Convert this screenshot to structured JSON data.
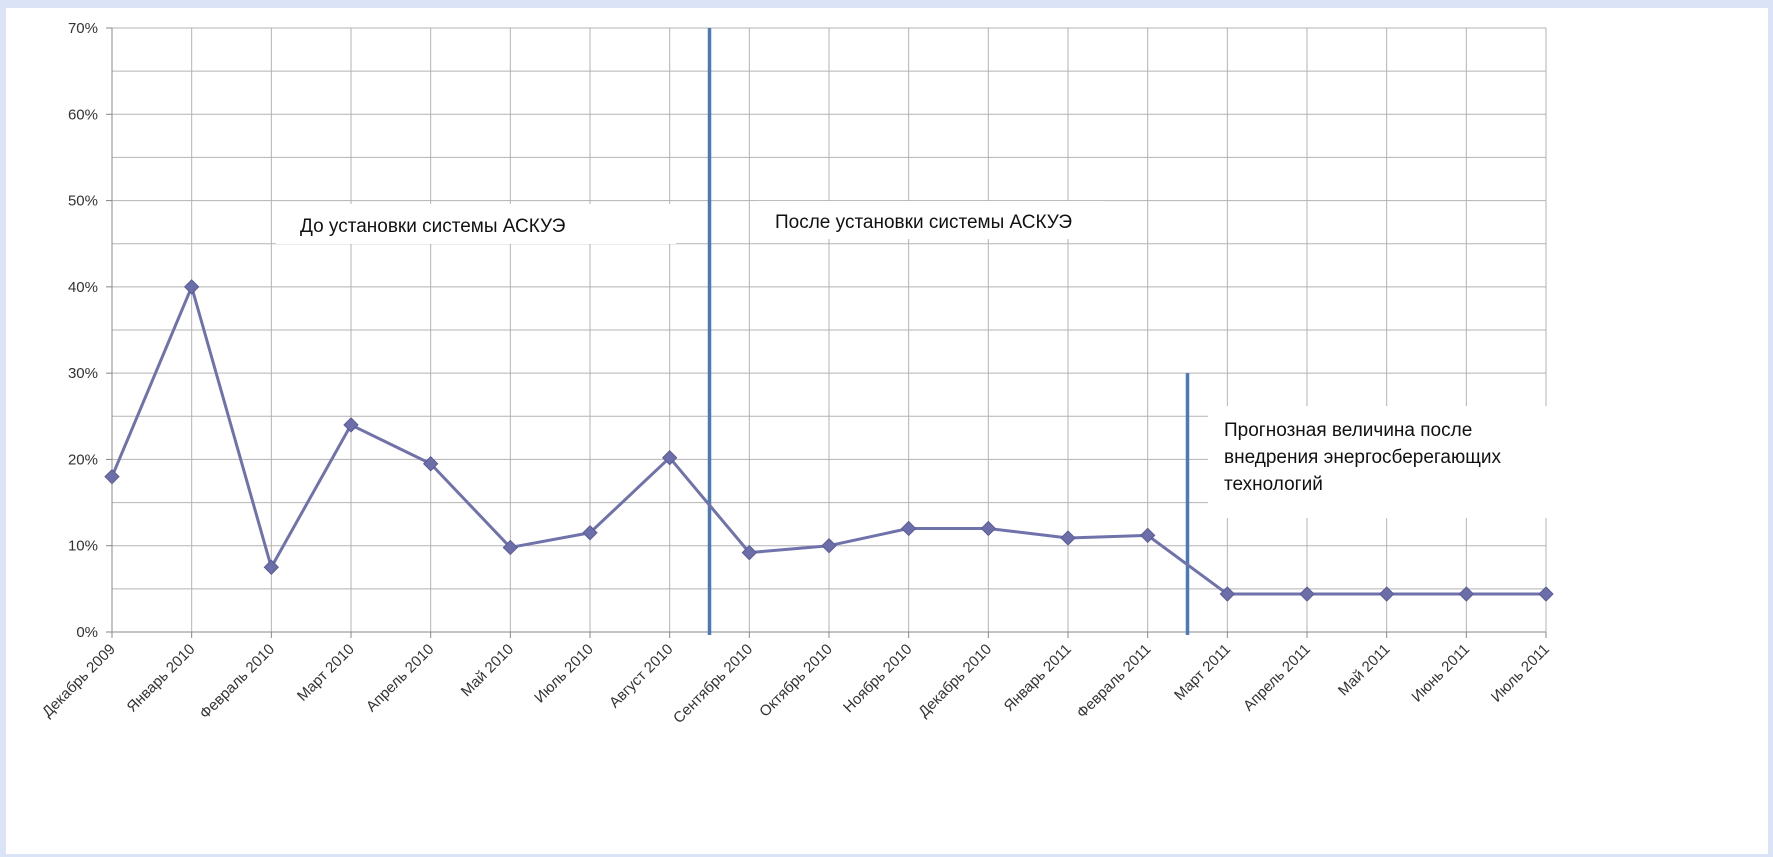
{
  "colors": {
    "background": "#dbe4f7",
    "plot_background": "#ffffff",
    "grid": "#b3b3b3",
    "series_line": "#7072ab",
    "marker": "#6b6ea8",
    "divider": "#4a7bb7"
  },
  "chart_data": {
    "type": "line",
    "title": "",
    "xlabel": "",
    "ylabel": "",
    "ylim": [
      0,
      70
    ],
    "y_ticks": [
      "0%",
      "10%",
      "20%",
      "30%",
      "40%",
      "50%",
      "60%",
      "70%"
    ],
    "grid": true,
    "legend": "none",
    "categories": [
      "Декабрь 2009",
      "Январь 2010",
      "Февраль 2010",
      "Март 2010",
      "Апрель 2010",
      "Май 2010",
      "Июль 2010",
      "Август 2010",
      "Сентябрь 2010",
      "Октябрь 2010",
      "Ноябрь 2010",
      "Декабрь 2010",
      "Январь 2011",
      "Февраль 2011",
      "Март 2011",
      "Апрель 2011",
      "Май 2011",
      "Июнь 2011",
      "Июль 2011"
    ],
    "series": [
      {
        "values": [
          18,
          40,
          7.5,
          24,
          19.5,
          9.8,
          11.5,
          20.2,
          9.2,
          10,
          12,
          12,
          10.9,
          11.2,
          4.4,
          4.4,
          4.4,
          4.4,
          4.4
        ],
        "marker_from_index": 0,
        "gap_markers_at": [
          8,
          14
        ]
      }
    ],
    "dividers": [
      {
        "between": [
          7,
          8
        ],
        "y_top": 70
      },
      {
        "between": [
          13,
          14
        ],
        "y_top": 30
      }
    ],
    "annotations": [
      "До установки системы АСКУЭ",
      "После установки системы АСКУЭ",
      "Прогнозная величина после",
      "внедрения энергосберегающих",
      "технологий"
    ]
  }
}
